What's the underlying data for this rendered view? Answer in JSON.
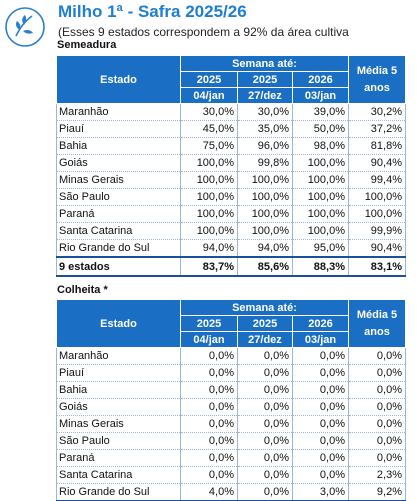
{
  "header": {
    "title": "Milho 1ª - Safra 2025/26",
    "subtitle": "(Esses 9 estados correspondem a 92% da área cultiva"
  },
  "sections": [
    {
      "label": "Semeadura",
      "columns": {
        "estado": "Estado",
        "semana": "Semana até:",
        "media": "Média 5 anos",
        "years": [
          "2025",
          "2025",
          "2026"
        ],
        "dates": [
          "04/jan",
          "27/dez",
          "03/jan"
        ]
      },
      "rows": [
        {
          "estado": "Maranhão",
          "v": [
            "30,0%",
            "30,0%",
            "39,0%",
            "30,2%"
          ]
        },
        {
          "estado": "Piauí",
          "v": [
            "45,0%",
            "35,0%",
            "50,0%",
            "37,2%"
          ]
        },
        {
          "estado": "Bahia",
          "v": [
            "75,0%",
            "96,0%",
            "98,0%",
            "81,8%"
          ]
        },
        {
          "estado": "Goiás",
          "v": [
            "100,0%",
            "99,8%",
            "100,0%",
            "90,4%"
          ]
        },
        {
          "estado": "Minas Gerais",
          "v": [
            "100,0%",
            "100,0%",
            "100,0%",
            "99,4%"
          ]
        },
        {
          "estado": "São Paulo",
          "v": [
            "100,0%",
            "100,0%",
            "100,0%",
            "100,0%"
          ]
        },
        {
          "estado": "Paraná",
          "v": [
            "100,0%",
            "100,0%",
            "100,0%",
            "100,0%"
          ]
        },
        {
          "estado": "Santa Catarina",
          "v": [
            "100,0%",
            "100,0%",
            "100,0%",
            "99,9%"
          ]
        },
        {
          "estado": "Rio Grande do Sul",
          "v": [
            "94,0%",
            "94,0%",
            "95,0%",
            "90,4%"
          ]
        }
      ],
      "total": {
        "estado": "9 estados",
        "v": [
          "83,7%",
          "85,6%",
          "88,3%",
          "83,1%"
        ]
      }
    },
    {
      "label": "Colheita *",
      "columns": {
        "estado": "Estado",
        "semana": "Semana até:",
        "media": "Média 5 anos",
        "years": [
          "2025",
          "2025",
          "2026"
        ],
        "dates": [
          "04/jan",
          "27/dez",
          "03/jan"
        ]
      },
      "rows": [
        {
          "estado": "Maranhão",
          "v": [
            "0,0%",
            "0,0%",
            "0,0%",
            "0,0%"
          ]
        },
        {
          "estado": "Piauí",
          "v": [
            "0,0%",
            "0,0%",
            "0,0%",
            "0,0%"
          ]
        },
        {
          "estado": "Bahia",
          "v": [
            "0,0%",
            "0,0%",
            "0,0%",
            "0,0%"
          ]
        },
        {
          "estado": "Goiás",
          "v": [
            "0,0%",
            "0,0%",
            "0,0%",
            "0,0%"
          ]
        },
        {
          "estado": "Minas Gerais",
          "v": [
            "0,0%",
            "0,0%",
            "0,0%",
            "0,0%"
          ]
        },
        {
          "estado": "São Paulo",
          "v": [
            "0,0%",
            "0,0%",
            "0,0%",
            "0,0%"
          ]
        },
        {
          "estado": "Paraná",
          "v": [
            "0,0%",
            "0,0%",
            "0,0%",
            "0,0%"
          ]
        },
        {
          "estado": "Santa Catarina",
          "v": [
            "0,0%",
            "0,0%",
            "0,0%",
            "2,3%"
          ]
        },
        {
          "estado": "Rio Grande do Sul",
          "v": [
            "4,0%",
            "0,0%",
            "3,0%",
            "9,2%"
          ]
        }
      ]
    }
  ]
}
